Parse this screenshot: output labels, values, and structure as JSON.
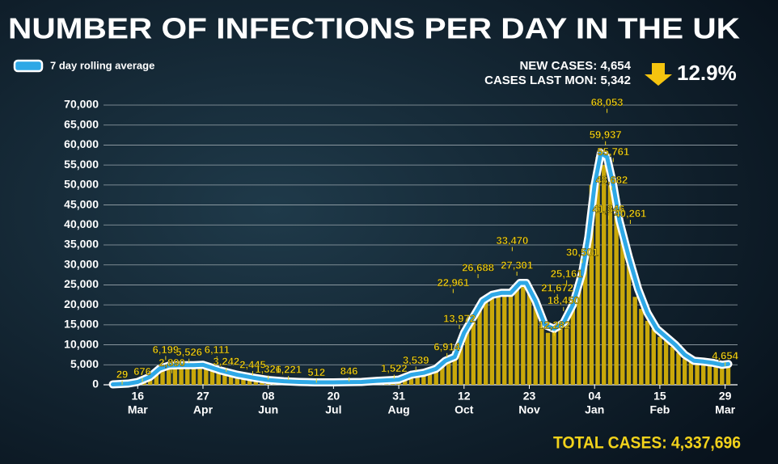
{
  "header": {
    "new_cases": "NEW CASES: 4,654",
    "last_mon": "CASES LAST MON: 5,342",
    "change": "12.9%",
    "total": "TOTAL CASES: 4,337,696"
  },
  "chart_data": {
    "type": "bar-line",
    "title": "NUMBER OF INFECTIONS PER DAY IN THE UK",
    "xlim": [
      -6,
      402
    ],
    "ylim": [
      0,
      70000
    ],
    "xticks": [
      {
        "value": 16,
        "label": "16"
      },
      {
        "value": 58,
        "label": "27"
      },
      {
        "value": 100,
        "label": "08"
      },
      {
        "value": 142,
        "label": "20"
      },
      {
        "value": 184,
        "label": "31"
      },
      {
        "value": 226,
        "label": "12"
      },
      {
        "value": 268,
        "label": "23"
      },
      {
        "value": 310,
        "label": "04"
      },
      {
        "value": 352,
        "label": "15"
      },
      {
        "value": 394,
        "label": "29"
      }
    ],
    "xtick_months": [
      "Mar",
      "Apr",
      "Jun",
      "Jul",
      "Aug",
      "Oct",
      "Nov",
      "Jan",
      "Feb",
      "Mar"
    ],
    "yticks": [
      0,
      {
        "value": 5000,
        "label": "5,000"
      },
      {
        "value": 10000,
        "label": "10,000"
      },
      {
        "value": 15000,
        "label": "15,000"
      },
      {
        "value": 20000,
        "label": "20,000"
      },
      {
        "value": 25000,
        "label": "25,000"
      },
      {
        "value": 30000,
        "label": "30,000"
      },
      {
        "value": 35000,
        "label": "35,000"
      },
      {
        "value": 40000,
        "label": "40,000"
      },
      {
        "value": 45000,
        "label": "45,000"
      },
      {
        "value": 50000,
        "label": "50,000"
      },
      {
        "value": 55000,
        "label": "55,000"
      },
      {
        "value": 60000,
        "label": "60,000"
      },
      {
        "value": 65000,
        "label": "65,000"
      },
      {
        "value": 70000,
        "label": "70,000"
      }
    ],
    "grid": true,
    "bars": {
      "color": "#c9a80a",
      "x": [
        0,
        4,
        8,
        12,
        16,
        20,
        24,
        28,
        32,
        36,
        40,
        44,
        48,
        52,
        56,
        60,
        64,
        68,
        72,
        76,
        80,
        84,
        88,
        92,
        96,
        100,
        104,
        108,
        112,
        116,
        120,
        124,
        128,
        132,
        136,
        140,
        144,
        148,
        152,
        156,
        160,
        164,
        168,
        172,
        176,
        180,
        184,
        188,
        192,
        196,
        200,
        204,
        208,
        212,
        216,
        220,
        224,
        228,
        232,
        236,
        240,
        244,
        248,
        252,
        256,
        260,
        264,
        268,
        272,
        276,
        280,
        284,
        288,
        292,
        296,
        300,
        304,
        308,
        312,
        316,
        320,
        324,
        328,
        332,
        336,
        340,
        344,
        348,
        352,
        356,
        360,
        364,
        368,
        372,
        376,
        380,
        384,
        388,
        392,
        396
      ],
      "values": [
        50,
        100,
        200,
        400,
        700,
        1200,
        2500,
        4000,
        5000,
        5500,
        5000,
        4800,
        5500,
        4500,
        5000,
        5500,
        4000,
        3500,
        3200,
        2500,
        2600,
        2000,
        1700,
        1500,
        1300,
        1300,
        1100,
        900,
        800,
        800,
        700,
        600,
        600,
        550,
        600,
        650,
        800,
        700,
        700,
        800,
        900,
        1000,
        1100,
        1200,
        1300,
        1500,
        1500,
        1800,
        2500,
        3000,
        3500,
        3800,
        4500,
        6000,
        7000,
        7500,
        12000,
        15000,
        17000,
        20000,
        22000,
        23000,
        22000,
        22500,
        24000,
        24000,
        26000,
        23000,
        20000,
        15000,
        13000,
        13500,
        15000,
        17000,
        20000,
        27000,
        34000,
        50000,
        57000,
        55000,
        50000,
        43000,
        38000,
        30000,
        22000,
        19000,
        16000,
        14000,
        12000,
        11000,
        9500,
        8000,
        6500,
        6000,
        5800,
        5600,
        5300,
        5000,
        4900,
        4654
      ]
    },
    "series": [
      {
        "name": "7 day rolling average",
        "color": "#2ea8e6",
        "x": [
          0,
          10,
          16,
          24,
          30,
          36,
          44,
          52,
          58,
          62,
          70,
          80,
          90,
          100,
          110,
          120,
          130,
          142,
          150,
          160,
          170,
          180,
          184,
          192,
          200,
          208,
          214,
          220,
          226,
          232,
          238,
          244,
          250,
          256,
          262,
          266,
          272,
          278,
          284,
          290,
          296,
          302,
          306,
          310,
          314,
          318,
          322,
          326,
          332,
          338,
          344,
          350,
          356,
          362,
          368,
          374,
          380,
          386,
          392,
          396
        ],
        "values": [
          100,
          300,
          700,
          2000,
          4000,
          4800,
          4900,
          4900,
          5000,
          4500,
          3500,
          2500,
          1800,
          1200,
          900,
          700,
          600,
          600,
          650,
          700,
          1000,
          1200,
          1300,
          2500,
          3000,
          4000,
          6000,
          7000,
          13000,
          17000,
          21000,
          22500,
          23000,
          23000,
          25500,
          25500,
          21000,
          15000,
          14000,
          15500,
          20000,
          28000,
          37000,
          50000,
          58000,
          57000,
          50000,
          41000,
          32000,
          24000,
          18000,
          14000,
          12000,
          10000,
          7500,
          6000,
          5800,
          5500,
          5000,
          5200
        ]
      }
    ],
    "annotations": [
      {
        "x": 6,
        "value": 29,
        "label": "29"
      },
      {
        "x": 19,
        "value": 676,
        "label": "676"
      },
      {
        "x": 34,
        "value": 6199,
        "label": "6,199"
      },
      {
        "x": 38,
        "value": 2890,
        "label": "2,890"
      },
      {
        "x": 49,
        "value": 5526,
        "label": "5,526"
      },
      {
        "x": 67,
        "value": 6111,
        "label": "6,111"
      },
      {
        "x": 73,
        "value": 3242,
        "label": "3,242"
      },
      {
        "x": 90,
        "value": 2445,
        "label": "2,445"
      },
      {
        "x": 100,
        "value": 1326,
        "label": "1,326"
      },
      {
        "x": 113,
        "value": 1221,
        "label": "1,221"
      },
      {
        "x": 131,
        "value": 512,
        "label": "512"
      },
      {
        "x": 152,
        "value": 846,
        "label": "846"
      },
      {
        "x": 181,
        "value": 1522,
        "label": "1,522"
      },
      {
        "x": 195,
        "value": 3539,
        "label": "3,539"
      },
      {
        "x": 215,
        "value": 6914,
        "label": "6,914"
      },
      {
        "x": 223,
        "value": 13972,
        "label": "13,972"
      },
      {
        "x": 219,
        "value": 22961,
        "label": "22,961"
      },
      {
        "x": 235,
        "value": 26688,
        "label": "26,688"
      },
      {
        "x": 260,
        "value": 27301,
        "label": "27,301"
      },
      {
        "x": 257,
        "value": 33470,
        "label": "33,470"
      },
      {
        "x": 284,
        "value": 12282,
        "label": "12,282"
      },
      {
        "x": 290,
        "value": 18450,
        "label": "18,450"
      },
      {
        "x": 286,
        "value": 21672,
        "label": "21,672"
      },
      {
        "x": 292,
        "value": 25161,
        "label": "25,161"
      },
      {
        "x": 302,
        "value": 30501,
        "label": "30,501"
      },
      {
        "x": 318,
        "value": 68053,
        "label": "68,053"
      },
      {
        "x": 317,
        "value": 59937,
        "label": "59,937"
      },
      {
        "x": 322,
        "value": 55761,
        "label": "55,761"
      },
      {
        "x": 321,
        "value": 48682,
        "label": "48,682"
      },
      {
        "x": 319,
        "value": 41346,
        "label": "41,346"
      },
      {
        "x": 333,
        "value": 40261,
        "label": "40,261"
      },
      {
        "x": 394,
        "value": 4654,
        "label": "4,654"
      }
    ]
  }
}
